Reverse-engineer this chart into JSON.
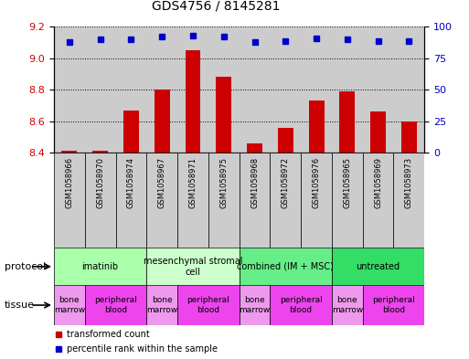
{
  "title": "GDS4756 / 8145281",
  "samples": [
    "GSM1058966",
    "GSM1058970",
    "GSM1058974",
    "GSM1058967",
    "GSM1058971",
    "GSM1058975",
    "GSM1058968",
    "GSM1058972",
    "GSM1058976",
    "GSM1058965",
    "GSM1058969",
    "GSM1058973"
  ],
  "transformed_count": [
    8.41,
    8.41,
    8.67,
    8.8,
    9.05,
    8.88,
    8.46,
    8.56,
    8.73,
    8.79,
    8.66,
    8.6
  ],
  "percentile_rank": [
    88,
    90,
    90,
    92,
    93,
    92,
    88,
    89,
    91,
    90,
    89,
    89
  ],
  "ylim_left": [
    8.4,
    9.2
  ],
  "ylim_right": [
    0,
    100
  ],
  "yticks_left": [
    8.4,
    8.6,
    8.8,
    9.0,
    9.2
  ],
  "yticks_right": [
    0,
    25,
    50,
    75,
    100
  ],
  "protocols": [
    {
      "label": "imatinib",
      "start": 0,
      "end": 3,
      "color": "#aaffaa"
    },
    {
      "label": "mesenchymal stromal\ncell",
      "start": 3,
      "end": 6,
      "color": "#ccffcc"
    },
    {
      "label": "combined (IM + MSC)",
      "start": 6,
      "end": 9,
      "color": "#66ee88"
    },
    {
      "label": "untreated",
      "start": 9,
      "end": 12,
      "color": "#33dd66"
    }
  ],
  "tissues": [
    {
      "label": "bone\nmarrow",
      "start": 0,
      "end": 1,
      "color": "#ee99ee"
    },
    {
      "label": "peripheral\nblood",
      "start": 1,
      "end": 3,
      "color": "#ee44ee"
    },
    {
      "label": "bone\nmarrow",
      "start": 3,
      "end": 4,
      "color": "#ee99ee"
    },
    {
      "label": "peripheral\nblood",
      "start": 4,
      "end": 6,
      "color": "#ee44ee"
    },
    {
      "label": "bone\nmarrow",
      "start": 6,
      "end": 7,
      "color": "#ee99ee"
    },
    {
      "label": "peripheral\nblood",
      "start": 7,
      "end": 9,
      "color": "#ee44ee"
    },
    {
      "label": "bone\nmarrow",
      "start": 9,
      "end": 10,
      "color": "#ee99ee"
    },
    {
      "label": "peripheral\nblood",
      "start": 10,
      "end": 12,
      "color": "#ee44ee"
    }
  ],
  "bar_color": "#cc0000",
  "dot_color": "#0000cc",
  "bar_width": 0.5,
  "grid_color": "#888888",
  "label_color_left": "#cc0000",
  "label_color_right": "#0000cc",
  "sample_bg_color": "#cccccc",
  "legend_bar_label": "transformed count",
  "legend_dot_label": "percentile rank within the sample",
  "protocol_label": "protocol",
  "tissue_label": "tissue"
}
